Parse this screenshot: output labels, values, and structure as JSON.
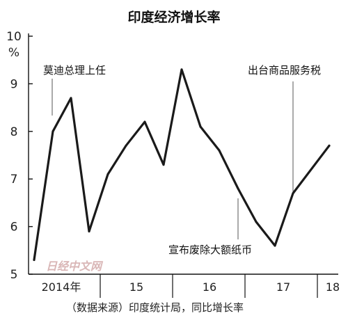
{
  "chart_data": {
    "type": "line",
    "title": "印度经济增长率",
    "yunit": "%",
    "ylim": [
      5,
      10
    ],
    "yticks": [
      5,
      6,
      7,
      8,
      9,
      10
    ],
    "grid": false,
    "xtick_labels": [
      "2014年",
      "15",
      "16",
      "17",
      "18"
    ],
    "series": [
      {
        "color": "#1a1a1a",
        "x": [
          "2014Q1",
          "2014Q2",
          "2014Q3",
          "2014Q4",
          "2015Q1",
          "2015Q2",
          "2015Q3",
          "2015Q4",
          "2016Q1",
          "2016Q2",
          "2016Q3",
          "2016Q4",
          "2017Q1",
          "2017Q2",
          "2017Q3",
          "2017Q4"
        ],
        "values": [
          5.3,
          8.0,
          8.7,
          5.9,
          7.1,
          7.7,
          8.2,
          7.3,
          9.3,
          8.1,
          7.6,
          6.8,
          6.1,
          5.6,
          6.7,
          7.7
        ]
      }
    ],
    "annotations": [
      {
        "text": "莫迪总理上任",
        "x": "2014Q2"
      },
      {
        "text": "宣布废除大额纸币",
        "x": "2016Q4"
      },
      {
        "text": "出台商品服务税",
        "x": "2017Q3"
      }
    ],
    "source": "（数据来源）印度统计局，同比增长率",
    "watermark": "日经中文网"
  }
}
